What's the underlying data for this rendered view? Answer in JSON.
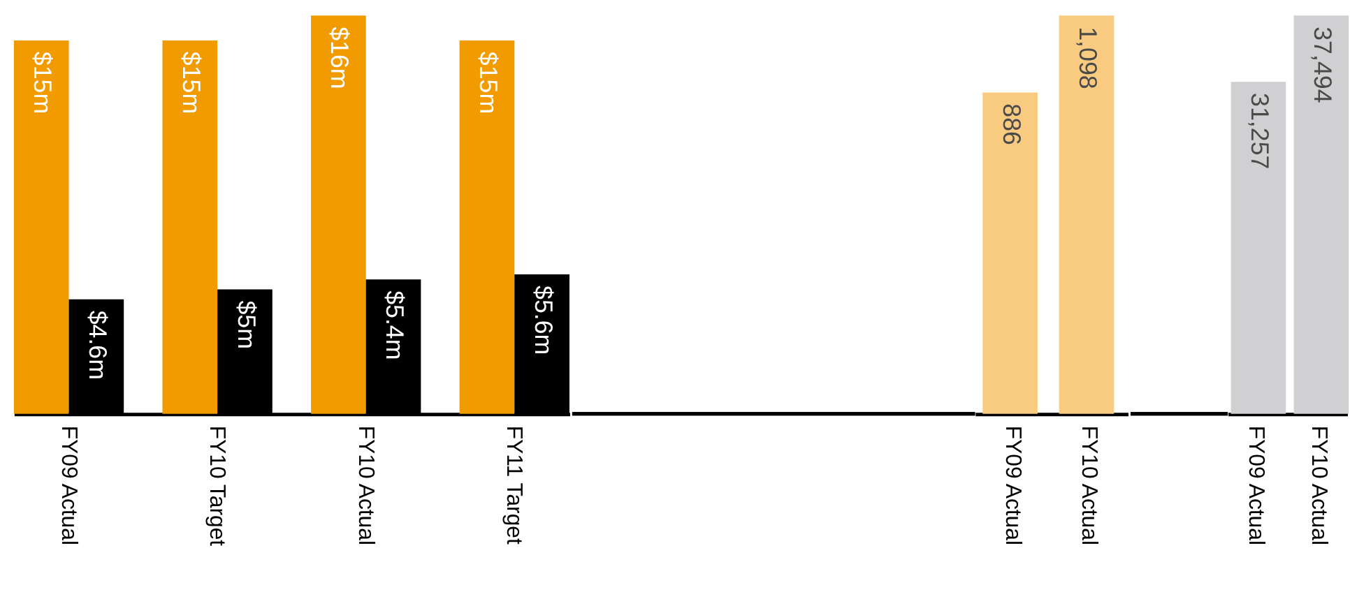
{
  "chart_data": [
    {
      "type": "bar",
      "categories": [
        "FY09 Actual",
        "FY10 Target",
        "FY10 Actual",
        "FY11 Target"
      ],
      "tick_labels": "x",
      "series": [
        {
          "color": "#f29b00",
          "values": [
            15,
            15,
            16,
            15
          ],
          "value_labels": [
            "$15m",
            "$15m",
            "$16m",
            "$15m"
          ]
        },
        {
          "color": "#000000",
          "values": [
            4.6,
            5,
            5.4,
            5.6
          ],
          "value_labels": [
            "$4.6m",
            "$5m",
            "$5.4m",
            "$5.6m"
          ]
        }
      ]
    },
    {
      "type": "bar",
      "categories": [
        "FY09 Actual",
        "FY10 Actual"
      ],
      "tick_labels": "x",
      "series": [
        {
          "color": "#f9cb80",
          "values": [
            886,
            1098
          ],
          "value_labels": [
            "886",
            "1,098"
          ]
        }
      ]
    },
    {
      "type": "bar",
      "categories": [
        "FY09 Actual",
        "FY10 Actual"
      ],
      "tick_labels": "x",
      "series": [
        {
          "color": "#d0d0d2",
          "values": [
            31257,
            37494
          ],
          "value_labels": [
            "31,257",
            "37,494"
          ]
        }
      ]
    }
  ]
}
